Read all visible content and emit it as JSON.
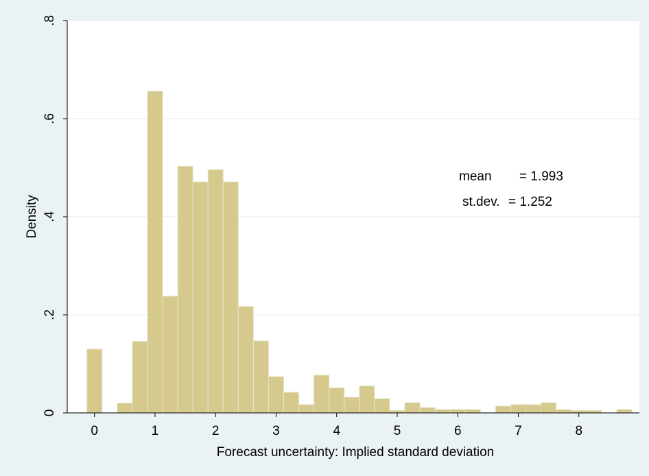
{
  "chart_data": {
    "type": "bar",
    "subtype": "histogram",
    "xlabel": "Forecast uncertainty: Implied standard deviation",
    "ylabel": "Density",
    "xlim": [
      -0.45,
      9.0
    ],
    "ylim": [
      0,
      0.8
    ],
    "x_ticks": [
      0,
      1,
      2,
      3,
      4,
      5,
      6,
      7,
      8
    ],
    "x_tick_labels": [
      "0",
      "1",
      "2",
      "3",
      "4",
      "5",
      "6",
      "7",
      "8"
    ],
    "y_ticks": [
      0,
      0.2,
      0.4,
      0.6,
      0.8
    ],
    "y_tick_labels": [
      "0",
      ".2",
      ".4",
      ".6",
      ".8"
    ],
    "grid": true,
    "bin_width": 0.25,
    "bins": [
      {
        "x0": -0.125,
        "x1": 0.125,
        "density": 0.13
      },
      {
        "x0": 0.375,
        "x1": 0.625,
        "density": 0.02
      },
      {
        "x0": 0.625,
        "x1": 0.875,
        "density": 0.146
      },
      {
        "x0": 0.875,
        "x1": 1.125,
        "density": 0.656
      },
      {
        "x0": 1.125,
        "x1": 1.375,
        "density": 0.238
      },
      {
        "x0": 1.375,
        "x1": 1.625,
        "density": 0.503
      },
      {
        "x0": 1.625,
        "x1": 1.875,
        "density": 0.471
      },
      {
        "x0": 1.875,
        "x1": 2.125,
        "density": 0.496
      },
      {
        "x0": 2.125,
        "x1": 2.375,
        "density": 0.471
      },
      {
        "x0": 2.375,
        "x1": 2.625,
        "density": 0.217
      },
      {
        "x0": 2.625,
        "x1": 2.875,
        "density": 0.147
      },
      {
        "x0": 2.875,
        "x1": 3.125,
        "density": 0.074
      },
      {
        "x0": 3.125,
        "x1": 3.375,
        "density": 0.042
      },
      {
        "x0": 3.375,
        "x1": 3.625,
        "density": 0.017
      },
      {
        "x0": 3.625,
        "x1": 3.875,
        "density": 0.077
      },
      {
        "x0": 3.875,
        "x1": 4.125,
        "density": 0.051
      },
      {
        "x0": 4.125,
        "x1": 4.375,
        "density": 0.032
      },
      {
        "x0": 4.375,
        "x1": 4.625,
        "density": 0.055
      },
      {
        "x0": 4.625,
        "x1": 4.875,
        "density": 0.029
      },
      {
        "x0": 4.875,
        "x1": 5.125,
        "density": 0.005
      },
      {
        "x0": 5.125,
        "x1": 5.375,
        "density": 0.021
      },
      {
        "x0": 5.375,
        "x1": 5.625,
        "density": 0.011
      },
      {
        "x0": 5.625,
        "x1": 5.875,
        "density": 0.007
      },
      {
        "x0": 5.875,
        "x1": 6.125,
        "density": 0.007
      },
      {
        "x0": 6.125,
        "x1": 6.375,
        "density": 0.007
      },
      {
        "x0": 6.625,
        "x1": 6.875,
        "density": 0.014
      },
      {
        "x0": 6.875,
        "x1": 7.125,
        "density": 0.017
      },
      {
        "x0": 7.125,
        "x1": 7.375,
        "density": 0.017
      },
      {
        "x0": 7.375,
        "x1": 7.625,
        "density": 0.021
      },
      {
        "x0": 7.625,
        "x1": 7.875,
        "density": 0.007
      },
      {
        "x0": 7.875,
        "x1": 8.125,
        "density": 0.005
      },
      {
        "x0": 8.125,
        "x1": 8.375,
        "density": 0.005
      },
      {
        "x0": 8.625,
        "x1": 8.875,
        "density": 0.007
      }
    ],
    "annotations": {
      "mean_label": "mean",
      "mean_value": "= 1.993",
      "sd_label": "st.dev.",
      "sd_value": "= 1.252"
    },
    "colors": {
      "bar_fill": "#d5c98e",
      "bar_edge": "#e6e6c8",
      "plot_bg": "#ffffff",
      "page_bg": "#eaf2f3",
      "grid": "#eaf2f3",
      "axis": "#000000"
    }
  }
}
